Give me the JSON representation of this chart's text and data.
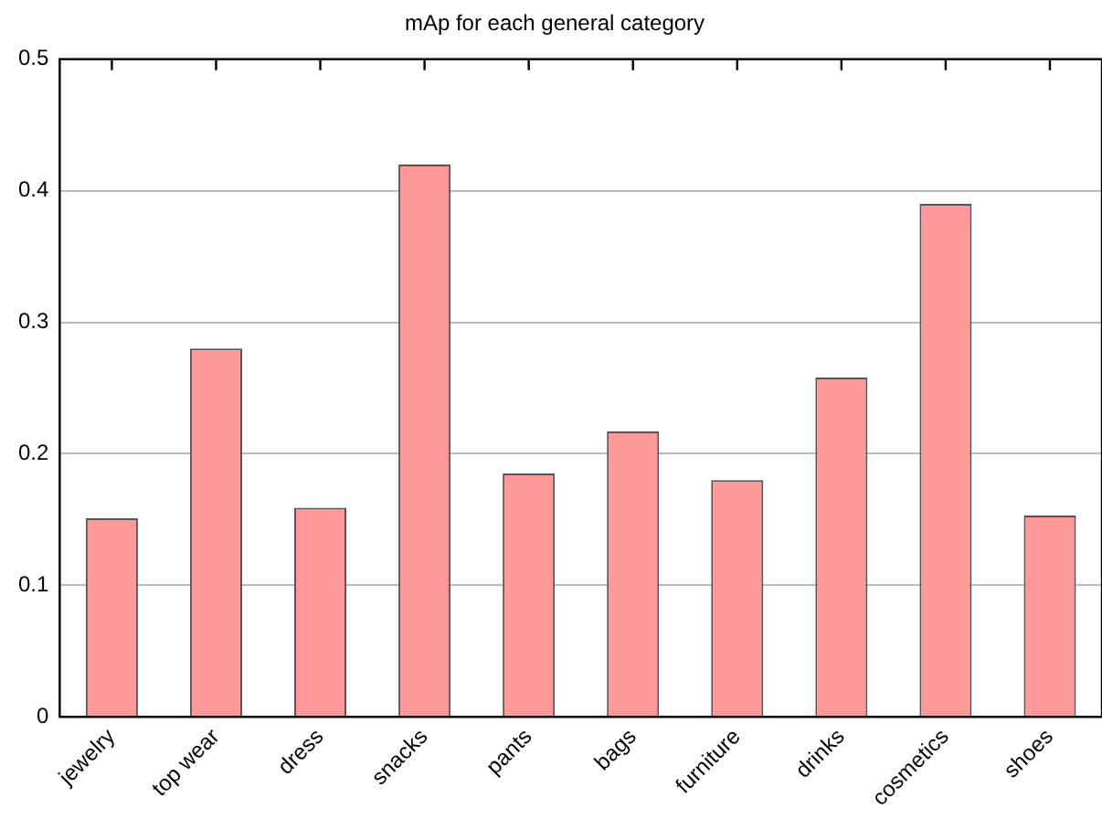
{
  "chart_data": {
    "type": "bar",
    "title": "mAp for each general category",
    "categories": [
      "jewelry",
      "top wear",
      "dress",
      "snacks",
      "pants",
      "bags",
      "furniture",
      "drinks",
      "cosmetics",
      "shoes"
    ],
    "values": [
      0.151,
      0.28,
      0.159,
      0.42,
      0.185,
      0.217,
      0.18,
      0.258,
      0.39,
      0.153
    ],
    "color": "#ff9999",
    "ylim": [
      0,
      0.5
    ],
    "yticks": [
      0,
      0.1,
      0.2,
      0.3,
      0.4,
      0.5
    ],
    "grid": "y",
    "legend": false
  }
}
